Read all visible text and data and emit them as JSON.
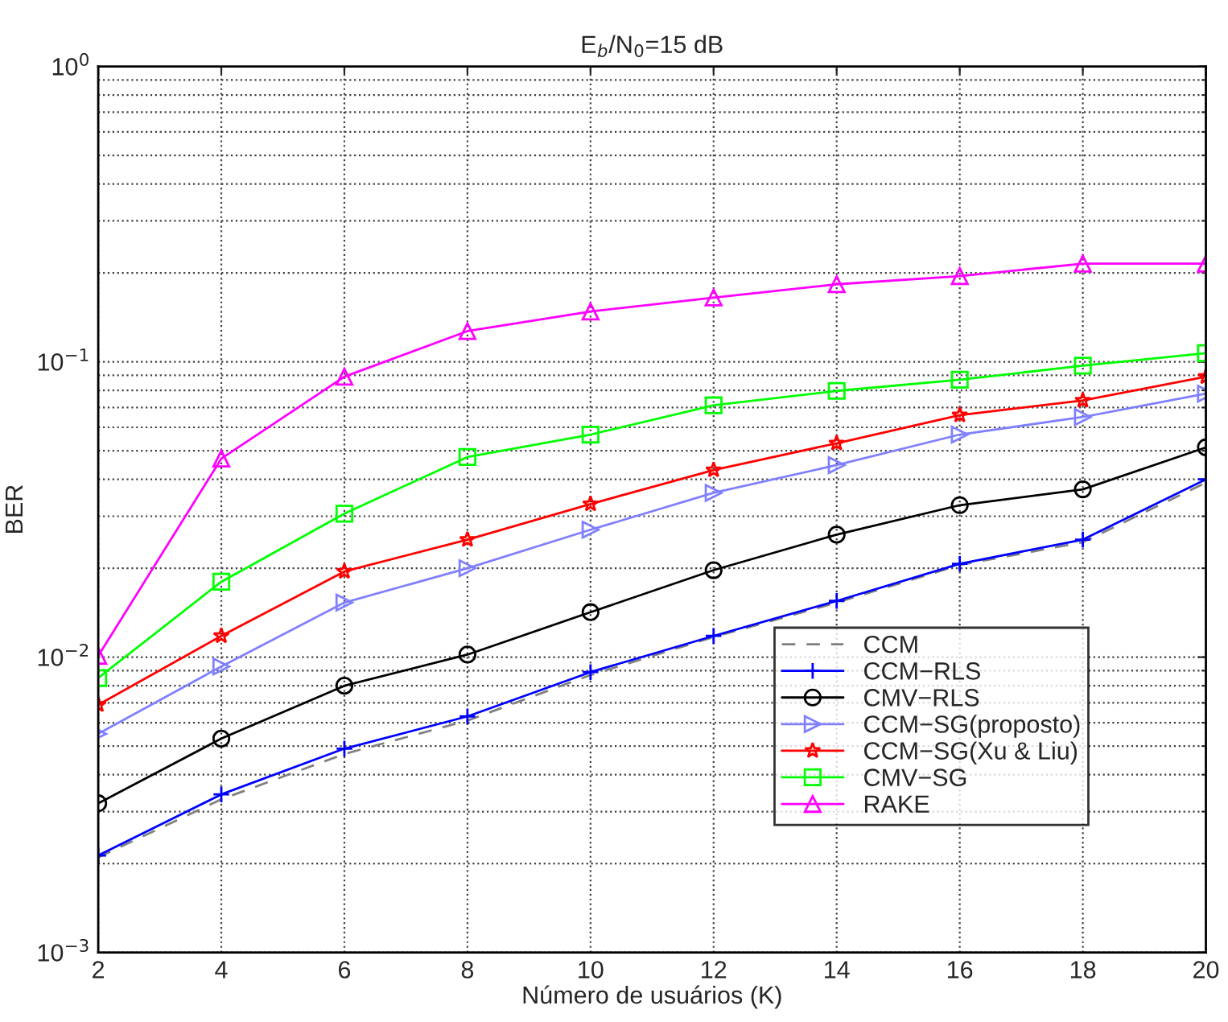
{
  "chart_data": {
    "type": "line",
    "title": "E$_{b}$/N$_{0}$=15 dB",
    "xlabel": "Número de usuários (K)",
    "ylabel": "BER",
    "x": [
      2,
      4,
      6,
      8,
      10,
      12,
      14,
      16,
      18,
      20
    ],
    "series": [
      {
        "name": "CCM",
        "color": "#808080",
        "marker": "none",
        "line_style": "dashed",
        "values": [
          0.0021,
          0.0033,
          0.0047,
          0.0061,
          0.0087,
          0.0117,
          0.0153,
          0.0205,
          0.0245,
          0.039
        ]
      },
      {
        "name": "CCM−RLS",
        "color": "#0000ff",
        "marker": "cross",
        "line_style": "solid",
        "values": [
          0.00213,
          0.00343,
          0.0049,
          0.0063,
          0.0089,
          0.0118,
          0.0155,
          0.0207,
          0.025,
          0.04
        ]
      },
      {
        "name": "CMV−RLS",
        "color": "#000000",
        "marker": "circle",
        "line_style": "solid",
        "values": [
          0.0032,
          0.0053,
          0.008,
          0.0102,
          0.0142,
          0.0197,
          0.026,
          0.0327,
          0.037,
          0.0513
        ]
      },
      {
        "name": "CCM−SG(proposto)",
        "color": "#8080ff",
        "marker": "triangle-right",
        "line_style": "solid",
        "values": [
          0.0055,
          0.0093,
          0.0153,
          0.02,
          0.027,
          0.036,
          0.0447,
          0.0567,
          0.065,
          0.078
        ]
      },
      {
        "name": "CCM−SG(Xu & Liu)",
        "color": "#ff0000",
        "marker": "star",
        "line_style": "solid",
        "values": [
          0.0069,
          0.0118,
          0.0195,
          0.025,
          0.033,
          0.043,
          0.053,
          0.066,
          0.074,
          0.089
        ]
      },
      {
        "name": "CMV−SG",
        "color": "#00ff00",
        "marker": "square",
        "line_style": "solid",
        "values": [
          0.0085,
          0.018,
          0.0306,
          0.0476,
          0.0567,
          0.0712,
          0.0797,
          0.087,
          0.097,
          0.107
        ]
      },
      {
        "name": "RAKE",
        "color": "#ff00ff",
        "marker": "triangle",
        "line_style": "solid",
        "values": [
          0.0101,
          0.047,
          0.089,
          0.127,
          0.148,
          0.165,
          0.183,
          0.195,
          0.215,
          0.215
        ]
      }
    ],
    "log": "y",
    "xlim": [
      2,
      20
    ],
    "ylim": [
      0.001,
      1
    ],
    "xticks": [
      2,
      4,
      6,
      8,
      10,
      12,
      14,
      16,
      18,
      20
    ],
    "yticks": [
      {
        "value": 0.001,
        "label": "10$^{−3}$"
      },
      {
        "value": 0.01,
        "label": "10$^{−2}$"
      },
      {
        "value": 0.1,
        "label": "10$^{−1}$"
      },
      {
        "value": 1,
        "label": "10$^{0}$"
      }
    ],
    "grid": true,
    "legend": "bottom right"
  }
}
